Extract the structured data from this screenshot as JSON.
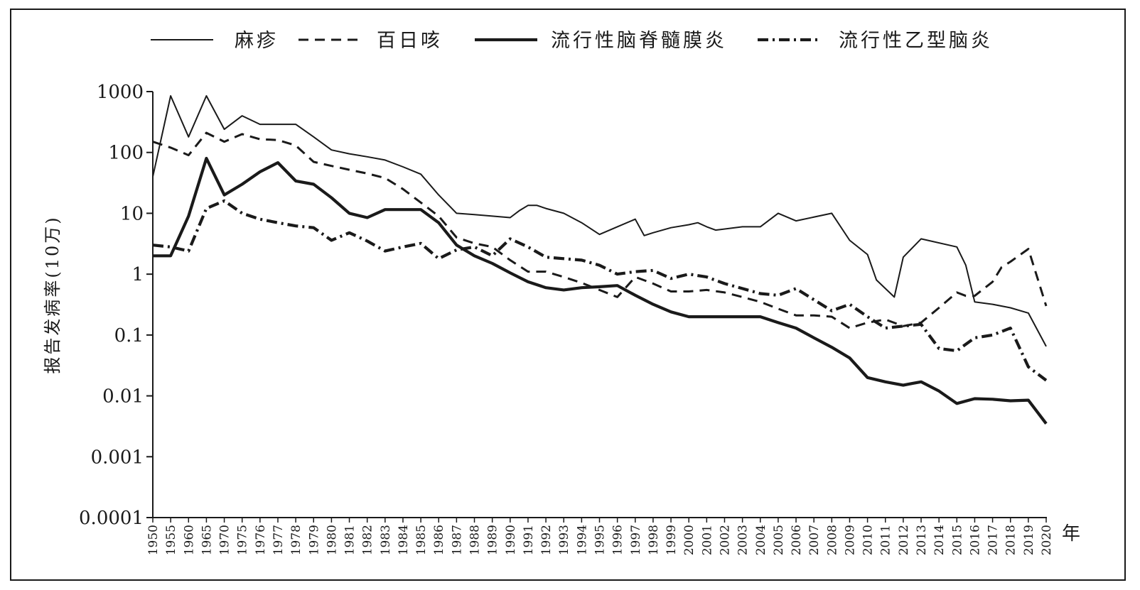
{
  "chart_data": {
    "type": "line",
    "scale": "log",
    "ylabel": "报告发病率(10万)",
    "xunit": "年",
    "x_ticks": [
      "1950",
      "1955",
      "1960",
      "1965",
      "1970",
      "1975",
      "1976",
      "1977",
      "1978",
      "1979",
      "1980",
      "1981",
      "1982",
      "1983",
      "1984",
      "1985",
      "1986",
      "1987",
      "1988",
      "1989",
      "1990",
      "1991",
      "1992",
      "1993",
      "1994",
      "1995",
      "1996",
      "1997",
      "1998",
      "1999",
      "2000",
      "2001",
      "2002",
      "2003",
      "2004",
      "2005",
      "2006",
      "2007",
      "2008",
      "2009",
      "2010",
      "2011",
      "2012",
      "2013",
      "2014",
      "2015",
      "2016",
      "2017",
      "2018",
      "2019",
      "2020"
    ],
    "y_ticks": [
      "0.0001",
      "0.001",
      "0.01",
      "0.1",
      "1",
      "10",
      "100",
      "1000"
    ],
    "ylim": [
      0.0001,
      1000
    ],
    "legend_position": "top",
    "series": [
      {
        "name": "麻疹",
        "style": "thin-solid",
        "points": [
          [
            "1950",
            40
          ],
          [
            "1955",
            850
          ],
          [
            "1960",
            180
          ],
          [
            "1965",
            850
          ],
          [
            "1970",
            240
          ],
          [
            "1975",
            400
          ],
          [
            "1976",
            290
          ],
          [
            "1977",
            290
          ],
          [
            "1978",
            290
          ],
          [
            "1979",
            180
          ],
          [
            "1980",
            110
          ],
          [
            "1981",
            95
          ],
          [
            "1982",
            85
          ],
          [
            "1983",
            75
          ],
          [
            "1984",
            58
          ],
          [
            "1985",
            44
          ],
          [
            "1986",
            20
          ],
          [
            "1987",
            10
          ],
          [
            "1988",
            9.5
          ],
          [
            "1989",
            9
          ],
          [
            "1990",
            8.5
          ],
          [
            "1990.5",
            11
          ],
          [
            "1991",
            13.5
          ],
          [
            "1991.5",
            13.5
          ],
          [
            "1992",
            12
          ],
          [
            "1993",
            10
          ],
          [
            "1994",
            7
          ],
          [
            "1995",
            4.5
          ],
          [
            "1996",
            6
          ],
          [
            "1997",
            8
          ],
          [
            "1997.5",
            4.3
          ],
          [
            "1998",
            4.8
          ],
          [
            "1999",
            5.8
          ],
          [
            "2000",
            6.5
          ],
          [
            "2000.5",
            7
          ],
          [
            "2001",
            6
          ],
          [
            "2001.5",
            5.3
          ],
          [
            "2003",
            6
          ],
          [
            "2004",
            6
          ],
          [
            "2005",
            10
          ],
          [
            "2006",
            7.5
          ],
          [
            "2008",
            10
          ],
          [
            "2009",
            3.6
          ],
          [
            "2010",
            2.1
          ],
          [
            "2010.5",
            0.8
          ],
          [
            "2011.5",
            0.42
          ],
          [
            "2012",
            1.9
          ],
          [
            "2013",
            3.8
          ],
          [
            "2015",
            2.8
          ],
          [
            "2015.5",
            1.4
          ],
          [
            "2016",
            0.35
          ],
          [
            "2017",
            0.32
          ],
          [
            "2018",
            0.28
          ],
          [
            "2019",
            0.23
          ],
          [
            "2020",
            0.065
          ]
        ]
      },
      {
        "name": "百日咳",
        "style": "dashed",
        "points": [
          [
            "1950",
            150
          ],
          [
            "1955",
            120
          ],
          [
            "1960",
            90
          ],
          [
            "1965",
            210
          ],
          [
            "1970",
            150
          ],
          [
            "1975",
            200
          ],
          [
            "1976",
            165
          ],
          [
            "1977",
            160
          ],
          [
            "1978",
            130
          ],
          [
            "1979",
            70
          ],
          [
            "1980",
            60
          ],
          [
            "1981",
            52
          ],
          [
            "1982",
            45
          ],
          [
            "1983",
            38
          ],
          [
            "1984",
            25
          ],
          [
            "1985",
            15
          ],
          [
            "1986",
            9
          ],
          [
            "1987",
            4
          ],
          [
            "1988",
            3.2
          ],
          [
            "1989",
            2.8
          ],
          [
            "1990",
            1.7
          ],
          [
            "1991",
            1.1
          ],
          [
            "1992",
            1.1
          ],
          [
            "1993",
            0.9
          ],
          [
            "1994",
            0.72
          ],
          [
            "1995",
            0.55
          ],
          [
            "1996",
            0.42
          ],
          [
            "1997",
            0.9
          ],
          [
            "1998",
            0.7
          ],
          [
            "1999",
            0.52
          ],
          [
            "2000",
            0.52
          ],
          [
            "2001",
            0.55
          ],
          [
            "2002",
            0.5
          ],
          [
            "2003",
            0.42
          ],
          [
            "2004",
            0.35
          ],
          [
            "2005",
            0.27
          ],
          [
            "2006",
            0.21
          ],
          [
            "2007",
            0.21
          ],
          [
            "2008",
            0.2
          ],
          [
            "2009",
            0.13
          ],
          [
            "2010",
            0.16
          ],
          [
            "2011",
            0.18
          ],
          [
            "2012",
            0.14
          ],
          [
            "2013",
            0.16
          ],
          [
            "2014",
            0.28
          ],
          [
            "2015",
            0.5
          ],
          [
            "2015.5",
            0.44
          ],
          [
            "2016",
            0.44
          ],
          [
            "2017",
            0.75
          ],
          [
            "2017.5",
            1.3
          ],
          [
            "2018",
            1.6
          ],
          [
            "2019",
            2.6
          ],
          [
            "2020",
            0.3
          ]
        ]
      },
      {
        "name": "流行性脑脊髓膜炎",
        "style": "thick-solid",
        "points": [
          [
            "1950",
            2
          ],
          [
            "1955",
            2
          ],
          [
            "1960",
            9
          ],
          [
            "1965",
            80
          ],
          [
            "1970",
            20
          ],
          [
            "1975",
            30
          ],
          [
            "1976",
            48
          ],
          [
            "1977",
            68
          ],
          [
            "1978",
            34
          ],
          [
            "1979",
            30
          ],
          [
            "1980",
            18
          ],
          [
            "1981",
            10
          ],
          [
            "1982",
            8.5
          ],
          [
            "1983",
            11.5
          ],
          [
            "1984",
            11.5
          ],
          [
            "1985",
            11.5
          ],
          [
            "1986",
            7
          ],
          [
            "1987",
            3
          ],
          [
            "1988",
            2
          ],
          [
            "1989",
            1.5
          ],
          [
            "1990",
            1.05
          ],
          [
            "1991",
            0.75
          ],
          [
            "1992",
            0.6
          ],
          [
            "1993",
            0.55
          ],
          [
            "1994",
            0.6
          ],
          [
            "1995",
            0.62
          ],
          [
            "1996",
            0.65
          ],
          [
            "1997",
            0.45
          ],
          [
            "1998",
            0.32
          ],
          [
            "1999",
            0.24
          ],
          [
            "2000",
            0.2
          ],
          [
            "2001",
            0.2
          ],
          [
            "2002",
            0.2
          ],
          [
            "2003",
            0.2
          ],
          [
            "2004",
            0.2
          ],
          [
            "2005",
            0.16
          ],
          [
            "2006",
            0.13
          ],
          [
            "2007",
            0.09
          ],
          [
            "2008",
            0.063
          ],
          [
            "2009",
            0.042
          ],
          [
            "2010",
            0.02
          ],
          [
            "2011",
            0.017
          ],
          [
            "2012",
            0.015
          ],
          [
            "2012.5",
            0.016
          ],
          [
            "2013",
            0.017
          ],
          [
            "2014",
            0.012
          ],
          [
            "2015",
            0.0075
          ],
          [
            "2016",
            0.009
          ],
          [
            "2017",
            0.0088
          ],
          [
            "2018",
            0.0083
          ],
          [
            "2019",
            0.0085
          ],
          [
            "2020",
            0.0035
          ]
        ]
      },
      {
        "name": "流行性乙型脑炎",
        "style": "dash-dot",
        "points": [
          [
            "1950",
            3
          ],
          [
            "1955",
            2.8
          ],
          [
            "1960",
            2.4
          ],
          [
            "1965",
            12
          ],
          [
            "1970",
            16
          ],
          [
            "1975",
            10
          ],
          [
            "1976",
            8
          ],
          [
            "1977",
            7
          ],
          [
            "1978",
            6.2
          ],
          [
            "1979",
            5.8
          ],
          [
            "1980",
            3.6
          ],
          [
            "1981",
            4.8
          ],
          [
            "1982",
            3.5
          ],
          [
            "1983",
            2.4
          ],
          [
            "1984",
            2.8
          ],
          [
            "1985",
            3.2
          ],
          [
            "1986",
            1.8
          ],
          [
            "1987",
            2.5
          ],
          [
            "1988",
            2.8
          ],
          [
            "1989",
            2
          ],
          [
            "1990",
            3.8
          ],
          [
            "1991",
            2.8
          ],
          [
            "1992",
            1.9
          ],
          [
            "1993",
            1.8
          ],
          [
            "1994",
            1.7
          ],
          [
            "1995",
            1.4
          ],
          [
            "1996",
            1
          ],
          [
            "1997",
            1.1
          ],
          [
            "1998",
            1.15
          ],
          [
            "1999",
            0.85
          ],
          [
            "2000",
            1
          ],
          [
            "2001",
            0.9
          ],
          [
            "2002",
            0.7
          ],
          [
            "2003",
            0.58
          ],
          [
            "2004",
            0.48
          ],
          [
            "2005",
            0.45
          ],
          [
            "2006",
            0.58
          ],
          [
            "2007",
            0.38
          ],
          [
            "2008",
            0.25
          ],
          [
            "2009",
            0.32
          ],
          [
            "2010",
            0.2
          ],
          [
            "2011",
            0.13
          ],
          [
            "2012",
            0.14
          ],
          [
            "2013",
            0.15
          ],
          [
            "2014",
            0.06
          ],
          [
            "2015",
            0.055
          ],
          [
            "2016",
            0.09
          ],
          [
            "2017",
            0.1
          ],
          [
            "2018",
            0.13
          ],
          [
            "2019",
            0.03
          ],
          [
            "2020",
            0.018
          ]
        ]
      }
    ]
  }
}
